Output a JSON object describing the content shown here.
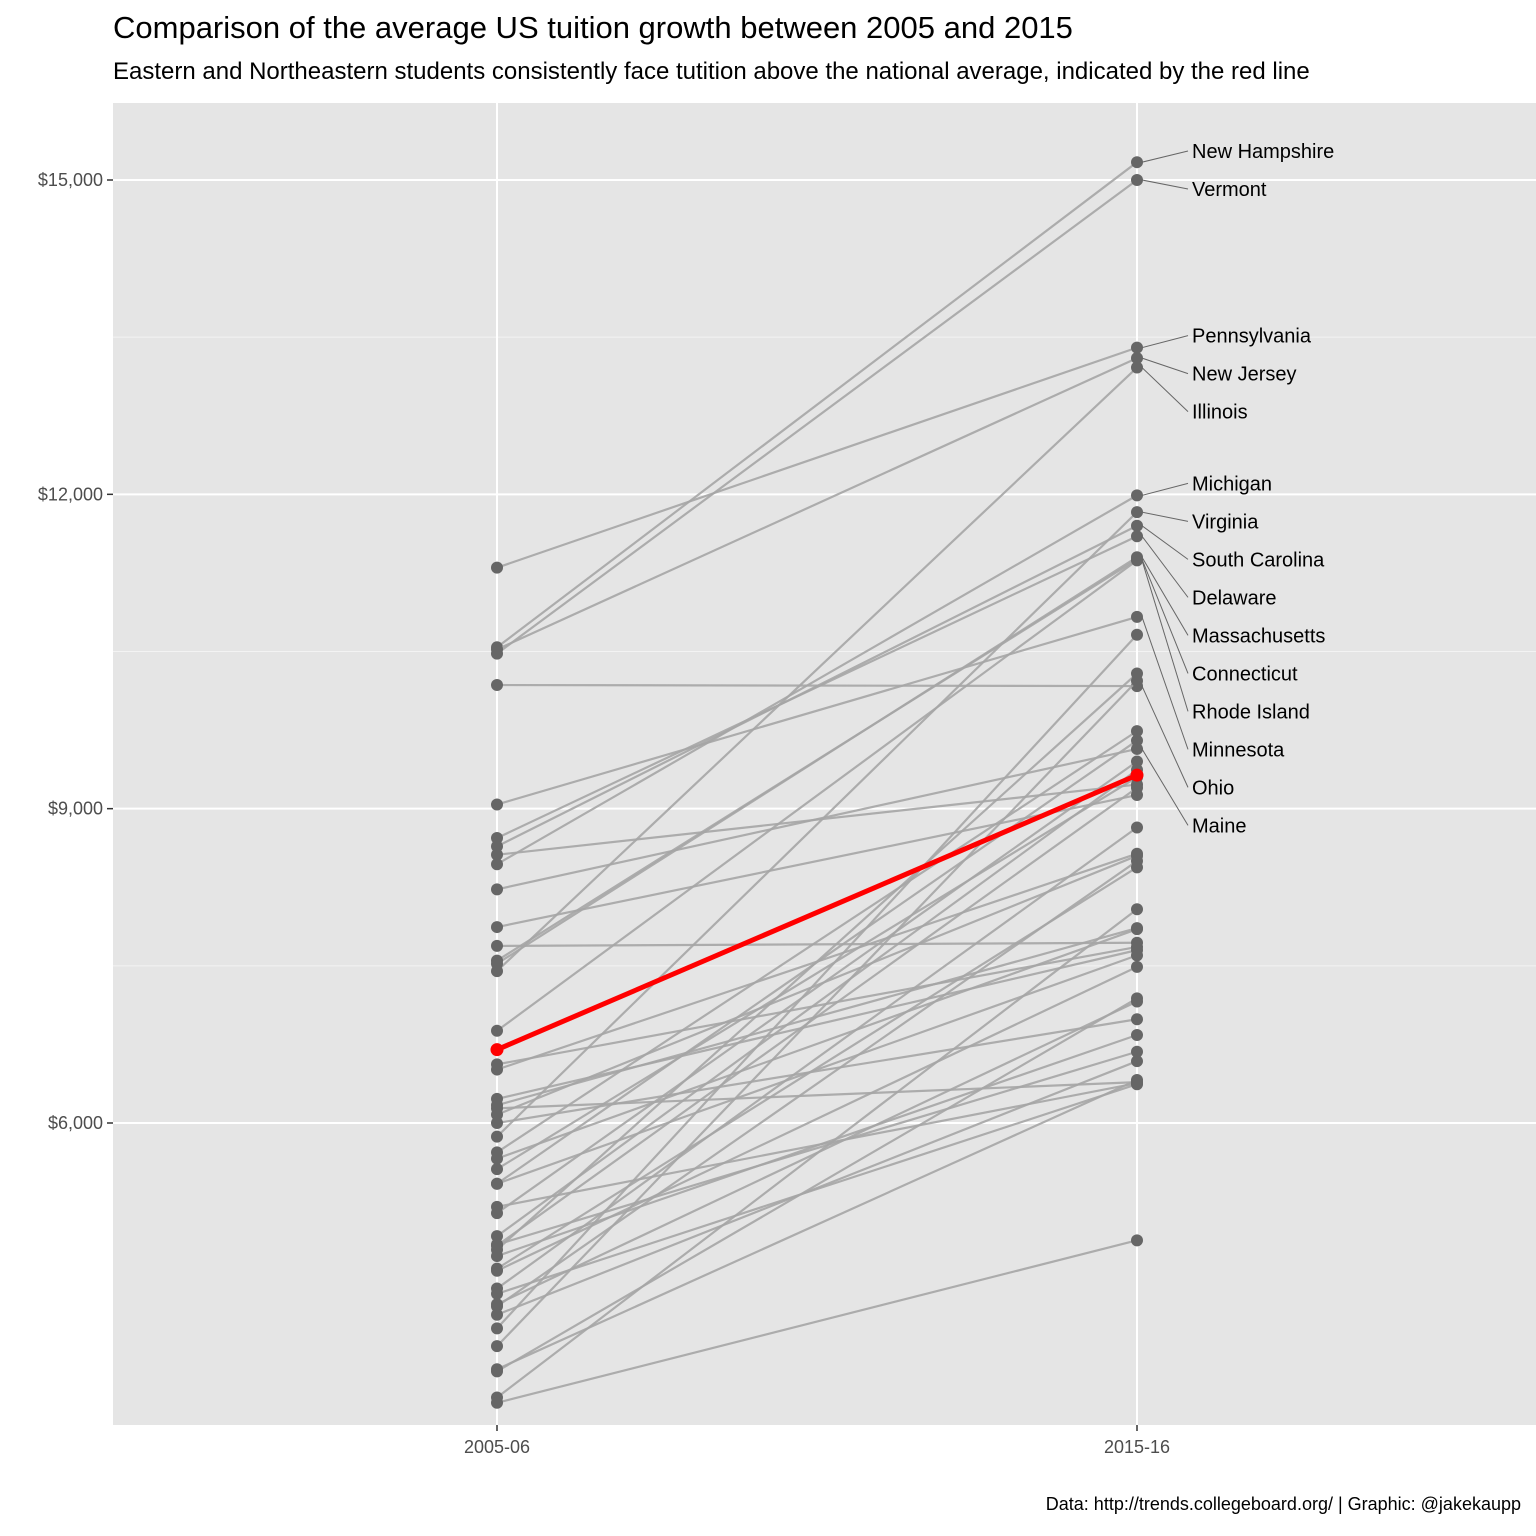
{
  "chart_data": {
    "type": "line",
    "title": "Comparison of the average US tuition growth between 2005 and 2015",
    "subtitle": "Eastern and Northeastern students consistently face tutition above the national average, indicated by the red line",
    "caption": "Data: http://trends.collegeboard.org/ | Graphic: @jakekaupp",
    "x_categories": [
      "2005-06",
      "2015-16"
    ],
    "y_ticks": [
      6000,
      9000,
      12000,
      15000
    ],
    "y_tick_labels": [
      "$6,000",
      "$9,000",
      "$12,000",
      "$15,000"
    ],
    "ylim": [
      3000,
      15800
    ],
    "grid": true,
    "colors": {
      "panel": "#e5e5e5",
      "grid": "#ffffff",
      "line": "#a6a6a6",
      "point": "#666666",
      "average": "#ff0000"
    },
    "average": {
      "name": "National average",
      "values": [
        6700,
        9320
      ]
    },
    "series": [
      {
        "name": "New Hampshire",
        "values": [
          10540,
          15170
        ]
      },
      {
        "name": "Vermont",
        "values": [
          10480,
          15000
        ]
      },
      {
        "name": "Pennsylvania",
        "values": [
          11300,
          13400
        ]
      },
      {
        "name": "New Jersey",
        "values": [
          10520,
          13300
        ]
      },
      {
        "name": "Illinois",
        "values": [
          7450,
          13210
        ]
      },
      {
        "name": "Michigan",
        "values": [
          8470,
          11990
        ]
      },
      {
        "name": "Virginia",
        "values": [
          5870,
          11830
        ]
      },
      {
        "name": "South Carolina",
        "values": [
          8640,
          11700
        ]
      },
      {
        "name": "Delaware",
        "values": [
          8720,
          11600
        ]
      },
      {
        "name": "Massachusetts",
        "values": [
          7520,
          11400
        ]
      },
      {
        "name": "Connecticut",
        "values": [
          7550,
          11380
        ]
      },
      {
        "name": "Rhode Island",
        "values": [
          6880,
          11370
        ]
      },
      {
        "name": "Minnesota",
        "values": [
          9040,
          10830
        ]
      },
      {
        "name": "Ohio",
        "values": [
          10180,
          10170
        ]
      },
      {
        "name": "Maine",
        "values": [
          8230,
          9570
        ]
      },
      {
        "name": "",
        "values": [
          4040,
          10660
        ]
      },
      {
        "name": "",
        "values": [
          4790,
          10290
        ]
      },
      {
        "name": "",
        "values": [
          3870,
          10220
        ]
      },
      {
        "name": "",
        "values": [
          5720,
          9740
        ]
      },
      {
        "name": "",
        "values": [
          5420,
          9650
        ]
      },
      {
        "name": "",
        "values": [
          5140,
          9450
        ]
      },
      {
        "name": "",
        "values": [
          4920,
          9370
        ]
      },
      {
        "name": "",
        "values": [
          5560,
          9300
        ]
      },
      {
        "name": "",
        "values": [
          8560,
          9230
        ]
      },
      {
        "name": "",
        "values": [
          4830,
          9200
        ]
      },
      {
        "name": "",
        "values": [
          7870,
          9130
        ]
      },
      {
        "name": "",
        "values": [
          4420,
          8820
        ]
      },
      {
        "name": "",
        "values": [
          6510,
          8570
        ]
      },
      {
        "name": "",
        "values": [
          6080,
          8550
        ]
      },
      {
        "name": "",
        "values": [
          4250,
          8500
        ]
      },
      {
        "name": "",
        "values": [
          4610,
          8440
        ]
      },
      {
        "name": "",
        "values": [
          3380,
          8040
        ]
      },
      {
        "name": "",
        "values": [
          6170,
          7860
        ]
      },
      {
        "name": "",
        "values": [
          5660,
          7850
        ]
      },
      {
        "name": "",
        "values": [
          7690,
          7720
        ]
      },
      {
        "name": "",
        "values": [
          6560,
          7680
        ]
      },
      {
        "name": "",
        "values": [
          6230,
          7650
        ]
      },
      {
        "name": "",
        "values": [
          5420,
          7600
        ]
      },
      {
        "name": "",
        "values": [
          4590,
          7490
        ]
      },
      {
        "name": "",
        "values": [
          3630,
          7190
        ]
      },
      {
        "name": "",
        "values": [
          4270,
          7160
        ]
      },
      {
        "name": "",
        "values": [
          6000,
          6990
        ]
      },
      {
        "name": "",
        "values": [
          4730,
          6840
        ]
      },
      {
        "name": "",
        "values": [
          4840,
          6680
        ]
      },
      {
        "name": "",
        "values": [
          4170,
          6590
        ]
      },
      {
        "name": "",
        "values": [
          3650,
          6410
        ]
      },
      {
        "name": "",
        "values": [
          6140,
          6390
        ]
      },
      {
        "name": "",
        "values": [
          5200,
          6380
        ]
      },
      {
        "name": "",
        "values": [
          4370,
          6370
        ]
      },
      {
        "name": "",
        "values": [
          3330,
          4880
        ]
      }
    ]
  }
}
